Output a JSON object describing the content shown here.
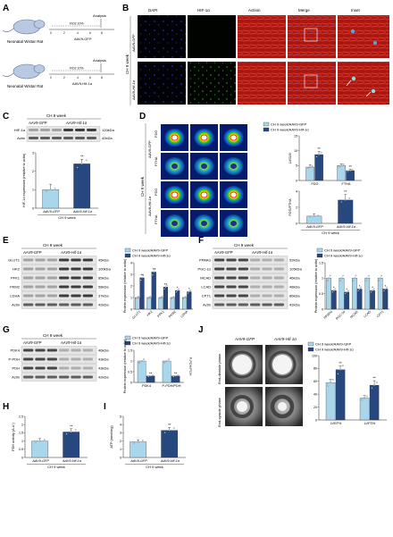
{
  "panels": [
    "A",
    "B",
    "C",
    "D",
    "E",
    "F",
    "G",
    "H",
    "I",
    "J"
  ],
  "colors": {
    "gfp": "#a9d6ea",
    "hif": "#27477f",
    "gfp_edge": "#5a7fa6",
    "fluor_red": "#c0201a",
    "fluor_green": "#2fa52f",
    "fluor_blue": "#1b2a8f"
  },
  "panel_a": {
    "rows": [
      {
        "label": "Neonatal Wistar Rat",
        "hypoxia": "FiO2 10%",
        "injection": "AAV9-GFP",
        "analysis": "Analysis"
      },
      {
        "label": "Neonatal Wistar Rat",
        "hypoxia": "FiO2 10%",
        "injection": "AAV9-Hif-1α",
        "analysis": "Analysis"
      }
    ],
    "ticks": [
      "0",
      "2",
      "4",
      "6",
      "8"
    ],
    "unit_note": "weeks"
  },
  "panel_b": {
    "columns": [
      "DAPI",
      "HIF-1α",
      "Actinin",
      "Merge",
      "Inset"
    ],
    "group_label": "CH 9 week",
    "rows": [
      "AAV9-GFP",
      "AAV9-Hif-1α"
    ]
  },
  "panel_c": {
    "header": "CH 9 week",
    "groups": [
      "AAV9-GFP",
      "AAV9-Hif-1α"
    ],
    "bands": [
      {
        "name": "HIF-1α",
        "kda": "120kDa"
      },
      {
        "name": "Actin",
        "kda": "42kDa"
      }
    ],
    "chart_data": {
      "type": "bar",
      "categories": [
        "AAV9-GFP",
        "AAV9-Hif-1α"
      ],
      "values": [
        1.0,
        2.4
      ],
      "errors": [
        0.3,
        0.25
      ],
      "sig": [
        "",
        "**"
      ],
      "ylabel": "HIF-1α expression (relative to actin)",
      "ylim": [
        0,
        3
      ],
      "yticks": [
        0,
        1,
        2,
        3
      ],
      "xlabel": "CH 9 week"
    }
  },
  "panel_d": {
    "group_label": "CH 9 week",
    "rows": [
      {
        "tracer": "FDG",
        "grp": "AAV9-GFP"
      },
      {
        "tracer": "FTHA",
        "grp": "AAV9-GFP"
      },
      {
        "tracer": "FDG",
        "grp": "AAV9-Hif-1α"
      },
      {
        "tracer": "FTHA",
        "grp": "AAV9-Hif-1α"
      }
    ],
    "legend": [
      "CH 9 week/AAV9-GFP",
      "CH 9 week/AAV9-Hif-1α"
    ],
    "chart_data": [
      {
        "type": "bar",
        "categories": [
          "FDG",
          "FTHA"
        ],
        "series": [
          {
            "name": "CH 9 week/AAV9-GFP",
            "values": [
              4.5,
              5.0
            ]
          },
          {
            "name": "CH 9 week/AAV9-Hif-1α",
            "values": [
              8.7,
              3.3
            ]
          }
        ],
        "errors": [
          [
            0.8,
            0.6
          ],
          [
            1.1,
            0.5
          ]
        ],
        "sig": [
          [
            "",
            ""
          ],
          [
            "**",
            "**"
          ]
        ],
        "ylabel": "LVSUV",
        "ylim": [
          0,
          15
        ],
        "yticks": [
          0,
          5,
          10,
          15
        ]
      },
      {
        "type": "bar",
        "categories": [
          "AAV9-GFP",
          "AAV9-Hif-1α"
        ],
        "values": [
          0.9,
          2.9
        ],
        "errors": [
          0.3,
          0.7
        ],
        "sig": [
          "",
          "**"
        ],
        "ylabel": "FDG/FTHA",
        "ylim": [
          0,
          4
        ],
        "yticks": [
          0,
          2,
          4
        ],
        "xlabel": "CH 9 week"
      }
    ]
  },
  "panel_e": {
    "header": "CH 9 week",
    "groups": [
      "AAV9-GFP",
      "AAV9-Hif-1α"
    ],
    "bands": [
      {
        "name": "GLUT1",
        "kda": "45kDa"
      },
      {
        "name": "HK2",
        "kda": "100kDa"
      },
      {
        "name": "PFK1",
        "kda": "85kDa"
      },
      {
        "name": "PKM2",
        "kda": "58kDa"
      },
      {
        "name": "LDHA",
        "kda": "37kDa"
      },
      {
        "name": "Actin",
        "kda": "42kDa"
      }
    ],
    "legend": [
      "CH 9 week/AAV9-GFP",
      "CH 9 week/AAV9-Hif-1α"
    ],
    "chart_data": {
      "type": "bar",
      "categories": [
        "GLUT1",
        "HK2",
        "PFK1",
        "PKM2",
        "LDHA"
      ],
      "series": [
        {
          "name": "CH 9 week/AAV9-GFP",
          "values": [
            1.0,
            1.0,
            1.0,
            1.0,
            1.0
          ]
        },
        {
          "name": "CH 9 week/AAV9-Hif-1α",
          "values": [
            2.7,
            3.2,
            1.9,
            1.6,
            1.5
          ]
        }
      ],
      "sig": [
        "**",
        "**",
        "**",
        "*",
        "*"
      ],
      "ylabel": "Protein expression (relative to actin)",
      "ylim": [
        0,
        4
      ],
      "yticks": [
        0,
        1,
        2,
        3,
        4
      ]
    }
  },
  "panel_f": {
    "header": "CH 9 week",
    "groups": [
      "AAV9-GFP",
      "AAV9-Hif-1α"
    ],
    "bands": [
      {
        "name": "PPARα",
        "kda": "52kDa"
      },
      {
        "name": "PGC-1α",
        "kda": "105kDa"
      },
      {
        "name": "MCAD",
        "kda": "46kDa"
      },
      {
        "name": "LCAD",
        "kda": "48kDa"
      },
      {
        "name": "CPT1",
        "kda": "86kDa"
      },
      {
        "name": "Actin",
        "kda": "42kDa"
      }
    ],
    "legend": [
      "CH 9 week/AAV9-GFP",
      "CH 9 week/AAV9-Hif-1α"
    ],
    "chart_data": {
      "type": "bar",
      "categories": [
        "PPARα",
        "PGC-1α",
        "MCAD",
        "LCAD",
        "CPT1"
      ],
      "series": [
        {
          "name": "CH 9 week/AAV9-GFP",
          "values": [
            1.0,
            1.0,
            1.0,
            1.0,
            1.0
          ]
        },
        {
          "name": "CH 9 week/AAV9-Hif-1α",
          "values": [
            0.6,
            0.55,
            0.65,
            0.6,
            0.65
          ]
        }
      ],
      "sig": [
        "*",
        "*",
        "*",
        "*",
        "*"
      ],
      "ylabel": "Protein expression (relative to actin)",
      "ylim": [
        0,
        1.5
      ],
      "yticks": [
        0,
        0.5,
        1.0,
        1.5
      ]
    }
  },
  "panel_g": {
    "header": "CH 9 week",
    "groups": [
      "AAV9-GFP",
      "AAV9-Hif-1α"
    ],
    "bands": [
      {
        "name": "PDK4",
        "kda": "46kDa"
      },
      {
        "name": "P-PDH",
        "kda": "43kDa"
      },
      {
        "name": "PDH",
        "kda": "43kDa"
      },
      {
        "name": "Actin",
        "kda": "42kDa"
      }
    ],
    "legend": [
      "CH 9 week/AAV9-GFP",
      "CH 9 week/AAV9-Hif-1α"
    ],
    "chart_data": {
      "type": "bar",
      "categories": [
        "PDK4",
        "P-PDH/PDH"
      ],
      "series": [
        {
          "name": "CH 9 week/AAV9-GFP",
          "values": [
            1.0,
            1.0
          ]
        },
        {
          "name": "CH 9 week/AAV9-Hif-1α",
          "values": [
            0.3,
            0.3
          ]
        }
      ],
      "sig": [
        "**",
        "**"
      ],
      "ylabel": "Protein expression (relative to actin)",
      "ylabel2": "P-PDH/PDH",
      "ylim": [
        0,
        1.5
      ],
      "yticks": [
        0,
        0.5,
        1.0,
        1.5
      ]
    }
  },
  "panel_h": {
    "chart_data": {
      "type": "bar",
      "categories": [
        "AAV9-GFP",
        "AAV9-Hif-1α"
      ],
      "values": [
        1.0,
        1.55
      ],
      "errors": [
        0.15,
        0.2
      ],
      "sig": [
        "",
        "**"
      ],
      "ylabel": "PDH activity (A.U.)",
      "ylim": [
        0,
        2.5
      ],
      "yticks": [
        0,
        0.5,
        1.0,
        1.5,
        2.0,
        2.5
      ],
      "xlabel": "CH 9 week"
    }
  },
  "panel_i": {
    "chart_data": {
      "type": "bar",
      "categories": [
        "AAV9-GFP",
        "AAV9-Hif-1α"
      ],
      "values": [
        1.9,
        3.3
      ],
      "errors": [
        0.25,
        0.35
      ],
      "sig": [
        "",
        "**"
      ],
      "ylabel": "ATP (nmol/mg)",
      "ylim": [
        0,
        5
      ],
      "yticks": [
        0,
        1,
        2,
        3,
        4,
        5
      ],
      "xlabel": "CH 9 week"
    }
  },
  "panel_j": {
    "columns": [
      "AAV9-GFP",
      "AAV9-Hif-1α"
    ],
    "rows": [
      "End-diastole phase",
      "End-systole phase"
    ],
    "legend": [
      "CH 9 week/AAV9-GFP",
      "CH 9 week/AAV9-Hif-1α"
    ],
    "chart_data": {
      "type": "bar",
      "categories": [
        "LVEF%",
        "LVFS%"
      ],
      "series": [
        {
          "name": "CH 9 week/AAV9-GFP",
          "values": [
            58,
            34
          ]
        },
        {
          "name": "CH 9 week/AAV9-Hif-1α",
          "values": [
            78,
            54
          ]
        }
      ],
      "errors": [
        [
          5,
          4
        ],
        [
          6,
          7
        ]
      ],
      "sig": [
        "**",
        "**"
      ],
      "ylim": [
        0,
        100
      ],
      "yticks": [
        0,
        20,
        40,
        60,
        80,
        100
      ]
    }
  }
}
